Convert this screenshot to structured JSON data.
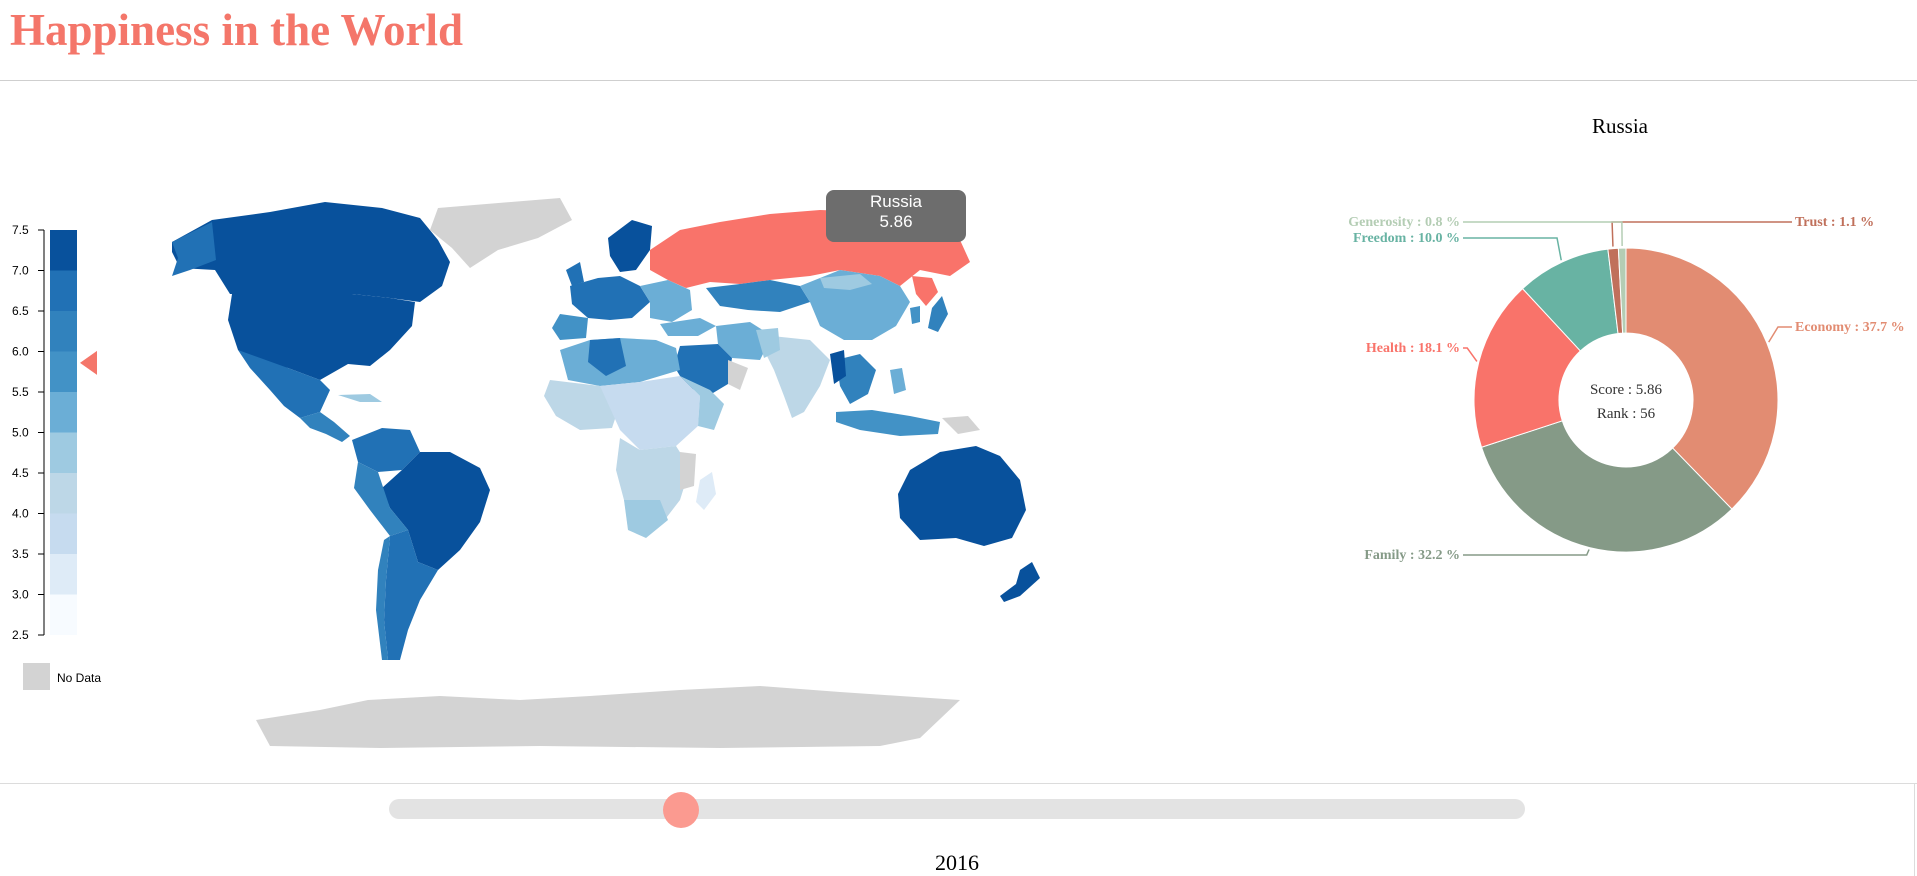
{
  "header": {
    "title": "Happiness in the World"
  },
  "legend": {
    "ticks": [
      "7.5",
      "7.0",
      "6.5",
      "6.0",
      "5.5",
      "5.0",
      "4.5",
      "4.0",
      "3.5",
      "3.0",
      "2.5"
    ],
    "min": 2.5,
    "max": 7.5,
    "bin_colors": [
      "#08519c",
      "#2171b5",
      "#3182bd",
      "#4292c6",
      "#6baed6",
      "#9ecae1",
      "#bdd7e7",
      "#c6dbef",
      "#deebf7",
      "#f7fbff"
    ],
    "indicator_value": 5.86,
    "indicator_color": "#f4766a",
    "no_data_label": "No Data",
    "no_data_color": "#d3d3d3"
  },
  "map": {
    "highlight_color": "#f9736a",
    "tooltip": {
      "country": "Russia",
      "score": "5.86"
    }
  },
  "donut": {
    "title": "Russia",
    "center_score": "Score : 5.86",
    "center_rank": "Rank : 56",
    "segments": [
      {
        "name": "Economy",
        "label": "Economy : 37.7 %",
        "percent": 37.7,
        "color": "#e28c72"
      },
      {
        "name": "Family",
        "label": "Family : 32.2 %",
        "percent": 32.2,
        "color": "#859a87"
      },
      {
        "name": "Health",
        "label": "Health : 18.1 %",
        "percent": 18.1,
        "color": "#f9736a"
      },
      {
        "name": "Freedom",
        "label": "Freedom : 10.0 %",
        "percent": 10.0,
        "color": "#68b3a3"
      },
      {
        "name": "Trust",
        "label": "Trust : 1.1 %",
        "percent": 1.1,
        "color": "#c0705b"
      },
      {
        "name": "Generosity",
        "label": "Generosity : 0.8 %",
        "percent": 0.8,
        "color": "#b4cdb4"
      }
    ]
  },
  "slider": {
    "year": "2016",
    "handle_color": "#fb9a90"
  }
}
